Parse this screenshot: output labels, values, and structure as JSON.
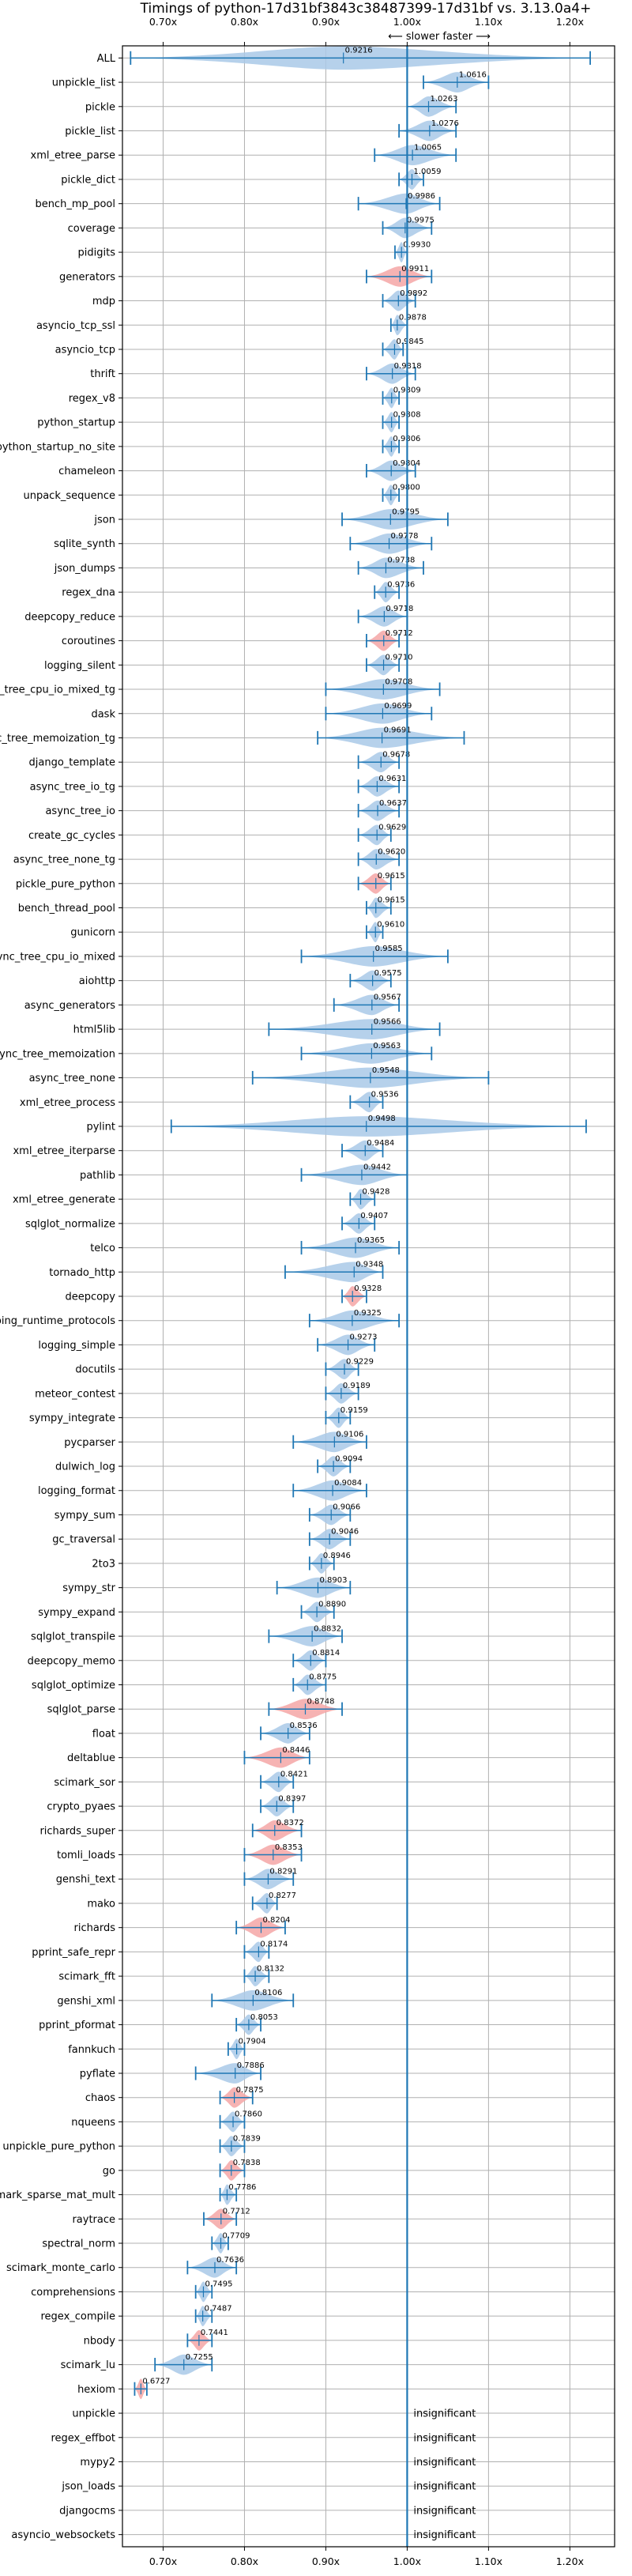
{
  "chart_data": {
    "type": "violin",
    "title": "Timings of python-17d31bf3843c38487399-17d31bf vs. 3.13.0a4+",
    "subtitle": "⟵ slower   faster ⟶",
    "xlim": [
      0.65,
      1.255
    ],
    "xticks": [
      0.7,
      0.8,
      0.9,
      1.0,
      1.1,
      1.2
    ],
    "xtick_labels": [
      "0.70x",
      "0.80x",
      "0.90x",
      "1.00x",
      "1.10x",
      "1.20x"
    ],
    "grid": true,
    "colors": {
      "violin": "#a9c9e8",
      "highlight": "#f4a6a6",
      "line": "#1f77b4",
      "frame": "#000000",
      "grid": "#b0b0b0"
    },
    "insignificant_label": "insignificant",
    "benchmarks": [
      {
        "name": "ALL",
        "value": 0.9216,
        "lo": 0.66,
        "hi": 1.225,
        "style": "all"
      },
      {
        "name": "unpickle_list",
        "value": 1.0616,
        "lo": 1.02,
        "hi": 1.1
      },
      {
        "name": "pickle",
        "value": 1.0263,
        "lo": 1.0,
        "hi": 1.06
      },
      {
        "name": "pickle_list",
        "value": 1.0276,
        "lo": 0.99,
        "hi": 1.06
      },
      {
        "name": "xml_etree_parse",
        "value": 1.0065,
        "lo": 0.96,
        "hi": 1.06
      },
      {
        "name": "pickle_dict",
        "value": 1.0059,
        "lo": 0.99,
        "hi": 1.02
      },
      {
        "name": "bench_mp_pool",
        "value": 0.9986,
        "lo": 0.94,
        "hi": 1.04
      },
      {
        "name": "coverage",
        "value": 0.9975,
        "lo": 0.97,
        "hi": 1.03
      },
      {
        "name": "pidigits",
        "value": 0.993,
        "lo": 0.985,
        "hi": 1.0
      },
      {
        "name": "generators",
        "value": 0.9911,
        "lo": 0.95,
        "hi": 1.03,
        "highlight": true
      },
      {
        "name": "mdp",
        "value": 0.9892,
        "lo": 0.97,
        "hi": 1.01
      },
      {
        "name": "asyncio_tcp_ssl",
        "value": 0.9878,
        "lo": 0.98,
        "hi": 1.0
      },
      {
        "name": "asyncio_tcp",
        "value": 0.9845,
        "lo": 0.97,
        "hi": 0.995
      },
      {
        "name": "thrift",
        "value": 0.9818,
        "lo": 0.95,
        "hi": 1.01
      },
      {
        "name": "regex_v8",
        "value": 0.9809,
        "lo": 0.97,
        "hi": 0.99
      },
      {
        "name": "python_startup",
        "value": 0.9808,
        "lo": 0.97,
        "hi": 0.99
      },
      {
        "name": "python_startup_no_site",
        "value": 0.9806,
        "lo": 0.97,
        "hi": 0.99
      },
      {
        "name": "chameleon",
        "value": 0.9804,
        "lo": 0.95,
        "hi": 1.01
      },
      {
        "name": "unpack_sequence",
        "value": 0.98,
        "lo": 0.97,
        "hi": 0.99
      },
      {
        "name": "json",
        "value": 0.9795,
        "lo": 0.92,
        "hi": 1.05
      },
      {
        "name": "sqlite_synth",
        "value": 0.9778,
        "lo": 0.93,
        "hi": 1.03
      },
      {
        "name": "json_dumps",
        "value": 0.9738,
        "lo": 0.94,
        "hi": 1.02
      },
      {
        "name": "regex_dna",
        "value": 0.9736,
        "lo": 0.96,
        "hi": 0.99
      },
      {
        "name": "deepcopy_reduce",
        "value": 0.9718,
        "lo": 0.94,
        "hi": 1.0
      },
      {
        "name": "coroutines",
        "value": 0.9712,
        "lo": 0.95,
        "hi": 0.99,
        "highlight": true
      },
      {
        "name": "logging_silent",
        "value": 0.971,
        "lo": 0.95,
        "hi": 0.99
      },
      {
        "name": "async_tree_cpu_io_mixed_tg",
        "value": 0.9708,
        "lo": 0.9,
        "hi": 1.04
      },
      {
        "name": "dask",
        "value": 0.9699,
        "lo": 0.9,
        "hi": 1.03
      },
      {
        "name": "async_tree_memoization_tg",
        "value": 0.9691,
        "lo": 0.89,
        "hi": 1.07
      },
      {
        "name": "django_template",
        "value": 0.9678,
        "lo": 0.94,
        "hi": 0.99
      },
      {
        "name": "async_tree_io_tg",
        "value": 0.9631,
        "lo": 0.94,
        "hi": 0.99
      },
      {
        "name": "async_tree_io",
        "value": 0.9637,
        "lo": 0.94,
        "hi": 0.99
      },
      {
        "name": "create_gc_cycles",
        "value": 0.9629,
        "lo": 0.94,
        "hi": 0.98
      },
      {
        "name": "async_tree_none_tg",
        "value": 0.962,
        "lo": 0.94,
        "hi": 0.99
      },
      {
        "name": "pickle_pure_python",
        "value": 0.9615,
        "lo": 0.94,
        "hi": 0.98,
        "highlight": true
      },
      {
        "name": "bench_thread_pool",
        "value": 0.9615,
        "lo": 0.95,
        "hi": 0.98
      },
      {
        "name": "gunicorn",
        "value": 0.961,
        "lo": 0.95,
        "hi": 0.97
      },
      {
        "name": "async_tree_cpu_io_mixed",
        "value": 0.9585,
        "lo": 0.87,
        "hi": 1.05
      },
      {
        "name": "aiohttp",
        "value": 0.9575,
        "lo": 0.93,
        "hi": 0.98
      },
      {
        "name": "async_generators",
        "value": 0.9567,
        "lo": 0.91,
        "hi": 0.99
      },
      {
        "name": "html5lib",
        "value": 0.9566,
        "lo": 0.83,
        "hi": 1.04
      },
      {
        "name": "async_tree_memoization",
        "value": 0.9563,
        "lo": 0.87,
        "hi": 1.03
      },
      {
        "name": "async_tree_none",
        "value": 0.9548,
        "lo": 0.81,
        "hi": 1.1
      },
      {
        "name": "xml_etree_process",
        "value": 0.9536,
        "lo": 0.93,
        "hi": 0.97
      },
      {
        "name": "pylint",
        "value": 0.9498,
        "lo": 0.71,
        "hi": 1.22
      },
      {
        "name": "xml_etree_iterparse",
        "value": 0.9484,
        "lo": 0.92,
        "hi": 0.97
      },
      {
        "name": "pathlib",
        "value": 0.9442,
        "lo": 0.87,
        "hi": 1.0
      },
      {
        "name": "xml_etree_generate",
        "value": 0.9428,
        "lo": 0.93,
        "hi": 0.96
      },
      {
        "name": "sqlglot_normalize",
        "value": 0.9407,
        "lo": 0.92,
        "hi": 0.96
      },
      {
        "name": "telco",
        "value": 0.9365,
        "lo": 0.87,
        "hi": 0.99
      },
      {
        "name": "tornado_http",
        "value": 0.9348,
        "lo": 0.85,
        "hi": 0.97
      },
      {
        "name": "deepcopy",
        "value": 0.9328,
        "lo": 0.92,
        "hi": 0.95,
        "highlight": true
      },
      {
        "name": "typing_runtime_protocols",
        "value": 0.9325,
        "lo": 0.88,
        "hi": 0.99
      },
      {
        "name": "logging_simple",
        "value": 0.9273,
        "lo": 0.89,
        "hi": 0.96
      },
      {
        "name": "docutils",
        "value": 0.9229,
        "lo": 0.9,
        "hi": 0.94
      },
      {
        "name": "meteor_contest",
        "value": 0.9189,
        "lo": 0.9,
        "hi": 0.94
      },
      {
        "name": "sympy_integrate",
        "value": 0.9159,
        "lo": 0.9,
        "hi": 0.93
      },
      {
        "name": "pycparser",
        "value": 0.9106,
        "lo": 0.86,
        "hi": 0.95
      },
      {
        "name": "dulwich_log",
        "value": 0.9094,
        "lo": 0.89,
        "hi": 0.93
      },
      {
        "name": "logging_format",
        "value": 0.9084,
        "lo": 0.86,
        "hi": 0.95
      },
      {
        "name": "sympy_sum",
        "value": 0.9066,
        "lo": 0.88,
        "hi": 0.93
      },
      {
        "name": "gc_traversal",
        "value": 0.9046,
        "lo": 0.88,
        "hi": 0.93
      },
      {
        "name": "2to3",
        "value": 0.8946,
        "lo": 0.88,
        "hi": 0.91
      },
      {
        "name": "sympy_str",
        "value": 0.8903,
        "lo": 0.84,
        "hi": 0.93
      },
      {
        "name": "sympy_expand",
        "value": 0.889,
        "lo": 0.87,
        "hi": 0.91
      },
      {
        "name": "sqlglot_transpile",
        "value": 0.8832,
        "lo": 0.83,
        "hi": 0.92
      },
      {
        "name": "deepcopy_memo",
        "value": 0.8814,
        "lo": 0.86,
        "hi": 0.9
      },
      {
        "name": "sqlglot_optimize",
        "value": 0.8775,
        "lo": 0.86,
        "hi": 0.9
      },
      {
        "name": "sqlglot_parse",
        "value": 0.8748,
        "lo": 0.83,
        "hi": 0.92,
        "highlight": true
      },
      {
        "name": "float",
        "value": 0.8536,
        "lo": 0.82,
        "hi": 0.88
      },
      {
        "name": "deltablue",
        "value": 0.8446,
        "lo": 0.8,
        "hi": 0.88,
        "highlight": true
      },
      {
        "name": "scimark_sor",
        "value": 0.8421,
        "lo": 0.82,
        "hi": 0.86
      },
      {
        "name": "crypto_pyaes",
        "value": 0.8397,
        "lo": 0.82,
        "hi": 0.86
      },
      {
        "name": "richards_super",
        "value": 0.8372,
        "lo": 0.81,
        "hi": 0.87,
        "highlight": true
      },
      {
        "name": "tomli_loads",
        "value": 0.8353,
        "lo": 0.8,
        "hi": 0.87,
        "highlight": true
      },
      {
        "name": "genshi_text",
        "value": 0.8291,
        "lo": 0.8,
        "hi": 0.86
      },
      {
        "name": "mako",
        "value": 0.8277,
        "lo": 0.81,
        "hi": 0.84
      },
      {
        "name": "richards",
        "value": 0.8204,
        "lo": 0.79,
        "hi": 0.85,
        "highlight": true
      },
      {
        "name": "pprint_safe_repr",
        "value": 0.8174,
        "lo": 0.8,
        "hi": 0.83
      },
      {
        "name": "scimark_fft",
        "value": 0.8132,
        "lo": 0.8,
        "hi": 0.83
      },
      {
        "name": "genshi_xml",
        "value": 0.8106,
        "lo": 0.76,
        "hi": 0.86
      },
      {
        "name": "pprint_pformat",
        "value": 0.8053,
        "lo": 0.79,
        "hi": 0.82
      },
      {
        "name": "fannkuch",
        "value": 0.7904,
        "lo": 0.78,
        "hi": 0.8
      },
      {
        "name": "pyflate",
        "value": 0.7886,
        "lo": 0.74,
        "hi": 0.82
      },
      {
        "name": "chaos",
        "value": 0.7875,
        "lo": 0.77,
        "hi": 0.81,
        "highlight": true
      },
      {
        "name": "nqueens",
        "value": 0.786,
        "lo": 0.77,
        "hi": 0.8
      },
      {
        "name": "unpickle_pure_python",
        "value": 0.7839,
        "lo": 0.77,
        "hi": 0.8
      },
      {
        "name": "go",
        "value": 0.7838,
        "lo": 0.77,
        "hi": 0.8,
        "highlight": true
      },
      {
        "name": "scimark_sparse_mat_mult",
        "value": 0.7786,
        "lo": 0.77,
        "hi": 0.79
      },
      {
        "name": "raytrace",
        "value": 0.7712,
        "lo": 0.75,
        "hi": 0.79,
        "highlight": true
      },
      {
        "name": "spectral_norm",
        "value": 0.7709,
        "lo": 0.76,
        "hi": 0.78
      },
      {
        "name": "scimark_monte_carlo",
        "value": 0.7636,
        "lo": 0.73,
        "hi": 0.79
      },
      {
        "name": "comprehensions",
        "value": 0.7495,
        "lo": 0.74,
        "hi": 0.76
      },
      {
        "name": "regex_compile",
        "value": 0.7487,
        "lo": 0.74,
        "hi": 0.76
      },
      {
        "name": "nbody",
        "value": 0.7441,
        "lo": 0.73,
        "hi": 0.76,
        "highlight": true
      },
      {
        "name": "scimark_lu",
        "value": 0.7255,
        "lo": 0.69,
        "hi": 0.76
      },
      {
        "name": "hexiom",
        "value": 0.6727,
        "lo": 0.665,
        "hi": 0.68,
        "highlight": true
      },
      {
        "name": "unpickle",
        "insignificant": true
      },
      {
        "name": "regex_effbot",
        "insignificant": true
      },
      {
        "name": "mypy2",
        "insignificant": true
      },
      {
        "name": "json_loads",
        "insignificant": true
      },
      {
        "name": "djangocms",
        "insignificant": true
      },
      {
        "name": "asyncio_websockets",
        "insignificant": true
      }
    ]
  }
}
